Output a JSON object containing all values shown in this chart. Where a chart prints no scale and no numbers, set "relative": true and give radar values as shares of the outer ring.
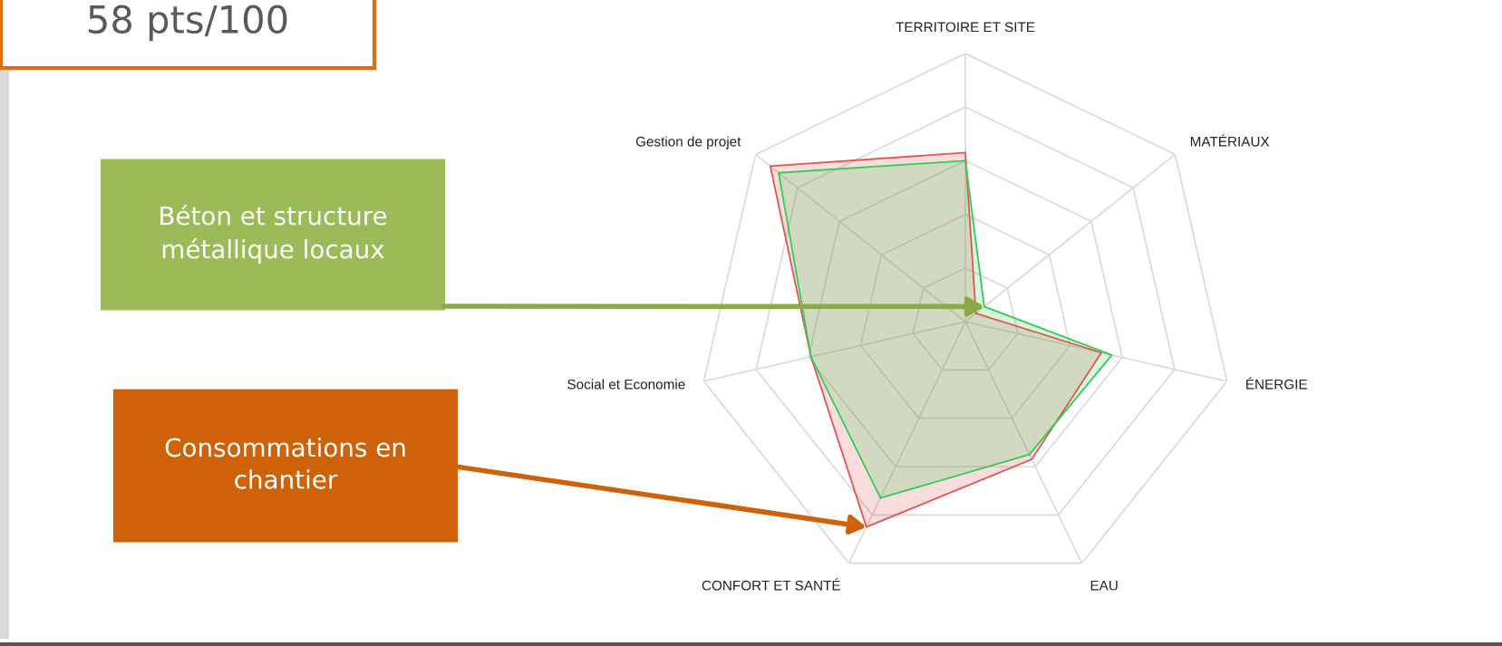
{
  "chart_data": {
    "type": "radar",
    "relative": true,
    "grid": true,
    "marker": "none",
    "categories": [
      "TERRITOIRE ET SITE",
      "MATÉRIAUX",
      "ÉNERGIE",
      "EAU",
      "CONFORT ET SANTÉ",
      "Social et Economie",
      "Gestion de projet"
    ],
    "series": [
      {
        "color": "#e05555",
        "values": [
          0.63,
          0.05,
          0.52,
          0.57,
          0.85,
          0.59,
          0.93
        ]
      },
      {
        "color": "#33cc55",
        "values": [
          0.6,
          0.09,
          0.56,
          0.55,
          0.73,
          0.59,
          0.89
        ]
      }
    ],
    "annotations": [
      "58 pts/100",
      {
        "text": "Béton et structure\nmétallique locaux",
        "x": "MATÉRIAUX"
      },
      {
        "text": "Consommations en\nchantier",
        "x": "CONFORT ET SANTÉ"
      }
    ]
  }
}
